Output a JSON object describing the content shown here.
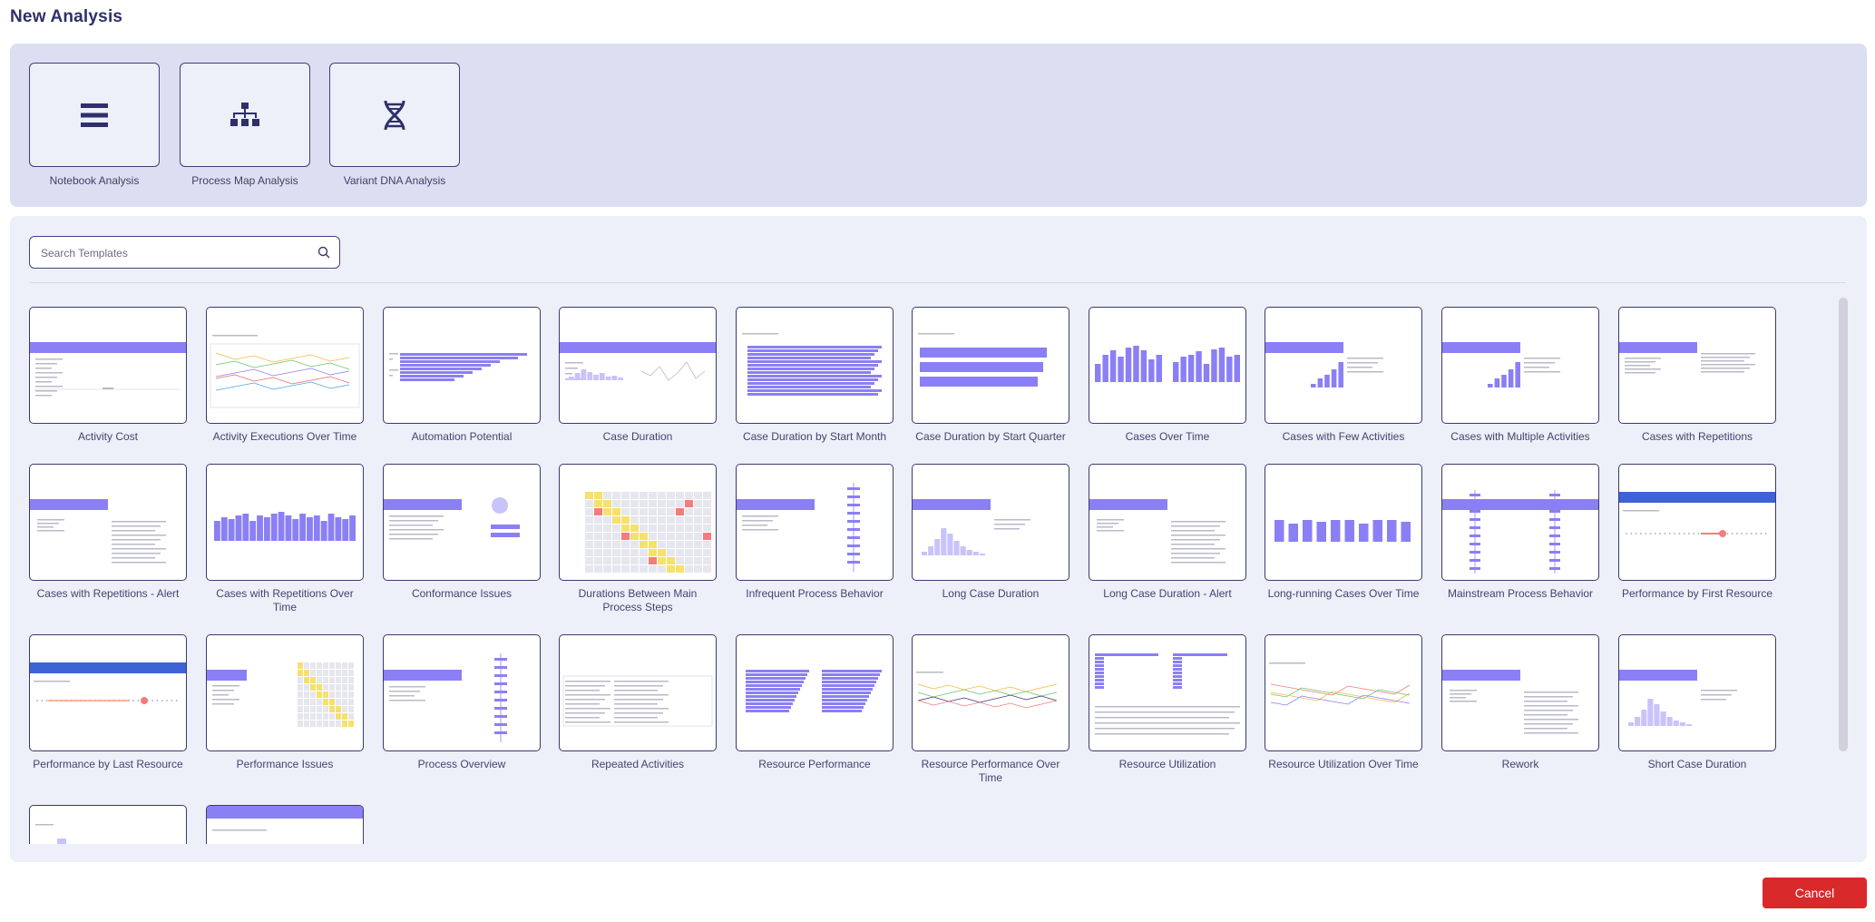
{
  "header": {
    "title": "New Analysis"
  },
  "analysis_types": [
    {
      "label": "Notebook Analysis",
      "icon": "list-icon"
    },
    {
      "label": "Process Map Analysis",
      "icon": "hierarchy-icon"
    },
    {
      "label": "Variant DNA Analysis",
      "icon": "dna-icon"
    }
  ],
  "search": {
    "placeholder": "Search Templates"
  },
  "templates": [
    {
      "label": "Activity Cost",
      "thumb": "table"
    },
    {
      "label": "Activity Executions Over Time",
      "thumb": "lines"
    },
    {
      "label": "Automation Potential",
      "thumb": "hbars"
    },
    {
      "label": "Case Duration",
      "thumb": "barsline"
    },
    {
      "label": "Case Duration by Start Month",
      "thumb": "hbars-full"
    },
    {
      "label": "Case Duration by Start Quarter",
      "thumb": "hbars-thick"
    },
    {
      "label": "Cases Over Time",
      "thumb": "vbars"
    },
    {
      "label": "Cases with Few Activities",
      "thumb": "smallbars"
    },
    {
      "label": "Cases with Multiple Activities",
      "thumb": "smallbars"
    },
    {
      "label": "Cases with Repetitions",
      "thumb": "text"
    },
    {
      "label": "Cases with Repetitions - Alert",
      "thumb": "table2"
    },
    {
      "label": "Cases with Repetitions Over Time",
      "thumb": "vbars-dense"
    },
    {
      "label": "Conformance Issues",
      "thumb": "donut"
    },
    {
      "label": "Durations Between Main Process Steps",
      "thumb": "heatmap"
    },
    {
      "label": "Infrequent Process Behavior",
      "thumb": "process"
    },
    {
      "label": "Long Case Duration",
      "thumb": "histogram"
    },
    {
      "label": "Long Case Duration - Alert",
      "thumb": "table2"
    },
    {
      "label": "Long-running Cases Over Time",
      "thumb": "vbars-tall"
    },
    {
      "label": "Mainstream Process Behavior",
      "thumb": "process2"
    },
    {
      "label": "Performance by First Resource",
      "thumb": "dots"
    },
    {
      "label": "Performance by Last Resource",
      "thumb": "dots2"
    },
    {
      "label": "Performance Issues",
      "thumb": "heatmap2"
    },
    {
      "label": "Process Overview",
      "thumb": "process"
    },
    {
      "label": "Repeated Activities",
      "thumb": "plaintable"
    },
    {
      "label": "Resource Performance",
      "thumb": "twohbars"
    },
    {
      "label": "Resource Performance Over Time",
      "thumb": "multiline"
    },
    {
      "label": "Resource Utilization",
      "thumb": "utilization"
    },
    {
      "label": "Resource Utilization Over Time",
      "thumb": "multiline2"
    },
    {
      "label": "Rework",
      "thumb": "table2"
    },
    {
      "label": "Short Case Duration",
      "thumb": "histogram"
    },
    {
      "label": "",
      "thumb": "partial"
    },
    {
      "label": "",
      "thumb": "header"
    }
  ],
  "footer": {
    "cancel_label": "Cancel"
  },
  "colors": {
    "accent": "#8b7ff5",
    "accent_dark": "#3a3a6e",
    "cancel": "#d9292b",
    "highlight_blue": "#3d63d6",
    "panel": "#dcdff1",
    "panel_light": "#edeff9"
  }
}
